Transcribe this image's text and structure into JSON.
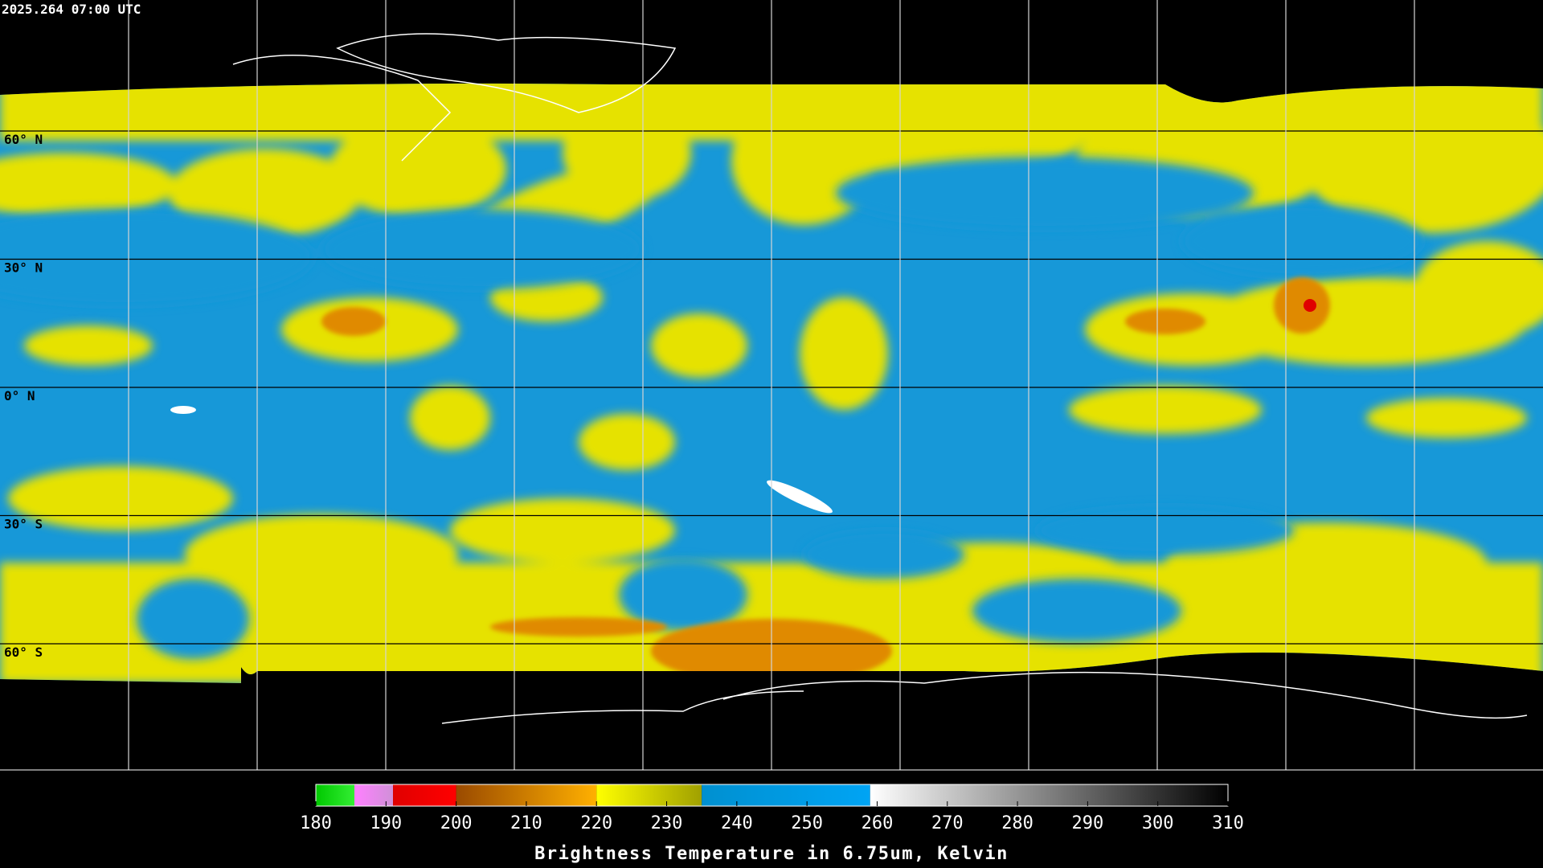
{
  "header": {
    "timestamp": "2025.264 07:00 UTC"
  },
  "map": {
    "lat_labels": [
      "60° N",
      "30° N",
      "0° N",
      "30° S",
      "60° S"
    ]
  },
  "colorbar": {
    "title": "Brightness Temperature in 6.75um, Kelvin",
    "lim": [
      180,
      310
    ],
    "ticks": [
      180,
      190,
      200,
      210,
      220,
      230,
      240,
      250,
      260,
      270,
      280,
      290,
      300,
      310
    ],
    "segments": [
      {
        "from": 180,
        "to": 185.5,
        "colors": [
          "#00c800",
          "#33ee33"
        ]
      },
      {
        "from": 185.5,
        "to": 191,
        "colors": [
          "#ff80ff",
          "#d090d8"
        ]
      },
      {
        "from": 191,
        "to": 200,
        "colors": [
          "#e00000",
          "#ff0000"
        ]
      },
      {
        "from": 200,
        "to": 220,
        "colors": [
          "#9a4a00",
          "#ffb000"
        ]
      },
      {
        "from": 220,
        "to": 235,
        "colors": [
          "#ffff00",
          "#a0a000"
        ]
      },
      {
        "from": 235,
        "to": 259,
        "colors": [
          "#0090d0",
          "#00a4f4"
        ]
      },
      {
        "from": 259,
        "to": 310,
        "colors": [
          "#ffffff",
          "#000000"
        ]
      }
    ]
  }
}
